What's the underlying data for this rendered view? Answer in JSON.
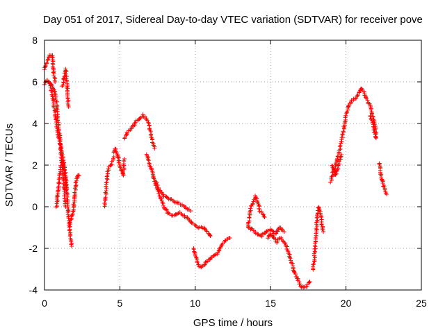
{
  "chart_data": {
    "type": "scatter",
    "title": "Day 051 of 2017, Sidereal Day-to-day VTEC variation (SDTVAR) for receiver pove",
    "xlabel": "GPS time / hours",
    "ylabel": "SDTVAR / TECUs",
    "xlim": [
      0,
      25
    ],
    "ylim": [
      -4,
      8
    ],
    "xticks": [
      0,
      5,
      10,
      15,
      20,
      25
    ],
    "yticks": [
      -4,
      -2,
      0,
      2,
      4,
      6,
      8
    ],
    "grid": true,
    "marker": "+",
    "color": "#ff0000",
    "series": [
      {
        "name": "SDTVAR",
        "segments": [
          {
            "x": [
              0.0,
              0.1,
              0.2,
              0.3,
              0.4,
              0.5,
              0.55,
              0.6,
              0.7
            ],
            "y": [
              6.6,
              6.8,
              7.0,
              7.2,
              7.3,
              7.25,
              7.1,
              6.5,
              6.0
            ]
          },
          {
            "x": [
              0.0,
              0.1,
              0.2,
              0.3,
              0.4,
              0.5,
              0.6,
              0.7,
              0.8,
              0.9,
              1.0,
              1.1,
              1.2,
              1.3,
              1.4,
              1.5,
              1.6,
              1.7,
              1.8
            ],
            "y": [
              5.9,
              6.0,
              6.1,
              6.0,
              5.8,
              5.5,
              5.0,
              4.5,
              4.0,
              3.5,
              3.2,
              2.8,
              2.4,
              2.0,
              1.5,
              0.5,
              -0.5,
              -1.3,
              -1.9
            ]
          },
          {
            "x": [
              0.3,
              0.5,
              0.7,
              0.8,
              0.9,
              1.0,
              1.1,
              1.2,
              1.3,
              1.4
            ],
            "y": [
              6.0,
              5.8,
              5.5,
              5.0,
              4.2,
              3.5,
              2.6,
              1.8,
              1.0,
              0.0
            ]
          },
          {
            "x": [
              1.2,
              1.3,
              1.4,
              1.5,
              1.6
            ],
            "y": [
              5.8,
              6.2,
              6.6,
              5.8,
              4.8
            ]
          },
          {
            "x": [
              0.8,
              0.9,
              1.0,
              1.1,
              1.2,
              1.3,
              1.4,
              1.5
            ],
            "y": [
              0.0,
              0.8,
              1.5,
              2.0,
              2.2,
              1.8,
              1.2,
              0.6
            ]
          },
          {
            "x": [
              1.7,
              1.8,
              1.9,
              2.0,
              2.1,
              2.2,
              2.3
            ],
            "y": [
              -0.8,
              -0.5,
              -0.2,
              0.5,
              1.2,
              1.5,
              1.5
            ]
          },
          {
            "x": [
              4.0,
              4.1,
              4.2,
              4.3,
              4.4,
              4.5,
              4.6
            ],
            "y": [
              0.0,
              1.0,
              1.7,
              1.9,
              2.0,
              2.2,
              2.4
            ]
          },
          {
            "x": [
              4.6,
              4.7,
              4.8,
              4.9,
              5.0,
              5.1,
              5.2,
              5.3
            ],
            "y": [
              2.6,
              2.8,
              2.6,
              2.3,
              2.0,
              1.8,
              1.5,
              2.3
            ]
          },
          {
            "x": [
              5.3,
              5.5,
              5.7,
              5.9,
              6.1,
              6.3,
              6.5,
              6.7,
              6.9,
              7.1,
              7.3
            ],
            "y": [
              3.3,
              3.6,
              3.7,
              3.9,
              4.1,
              4.2,
              4.4,
              4.3,
              4.0,
              3.3,
              2.8
            ]
          },
          {
            "x": [
              6.8,
              7.0,
              7.2,
              7.4,
              7.6,
              7.8,
              8.0,
              8.2,
              8.4,
              8.6,
              8.8,
              9.0,
              9.2,
              9.4,
              9.6,
              9.8,
              10.0,
              10.2,
              10.5,
              10.8,
              11.0
            ],
            "y": [
              2.5,
              2.0,
              1.5,
              1.0,
              0.6,
              0.2,
              -0.1,
              -0.3,
              -0.4,
              -0.4,
              -0.3,
              -0.3,
              -0.4,
              -0.5,
              -0.6,
              -0.8,
              -0.9,
              -1.0,
              -1.0,
              -1.2,
              -1.4
            ]
          },
          {
            "x": [
              7.4,
              7.6,
              7.8,
              8.0,
              8.2,
              8.5,
              8.8,
              9.1,
              9.4,
              9.7
            ],
            "y": [
              1.2,
              0.8,
              0.6,
              0.5,
              0.4,
              0.3,
              0.2,
              0.1,
              -0.1,
              -0.2
            ]
          },
          {
            "x": [
              9.9,
              10.0,
              10.2,
              10.4,
              10.6,
              10.8,
              11.0,
              11.2,
              11.5,
              11.8,
              12.0,
              12.3
            ],
            "y": [
              -2.0,
              -2.3,
              -2.8,
              -2.9,
              -2.8,
              -2.6,
              -2.5,
              -2.4,
              -2.2,
              -1.8,
              -1.6,
              -1.5
            ]
          },
          {
            "x": [
              13.5,
              13.7,
              13.9,
              14.0,
              14.1,
              14.3,
              14.6
            ],
            "y": [
              -1.0,
              0.0,
              0.3,
              0.5,
              0.3,
              -0.2,
              -0.5
            ]
          },
          {
            "x": [
              13.5,
              13.8,
              14.1,
              14.4,
              14.7,
              15.0,
              15.3,
              15.6,
              15.9
            ],
            "y": [
              -1.0,
              -1.1,
              -1.3,
              -1.4,
              -1.2,
              -1.1,
              -1.3,
              -1.0,
              -1.2
            ]
          },
          {
            "x": [
              14.8,
              15.0,
              15.2,
              15.4,
              15.6,
              15.8,
              16.0,
              16.2,
              16.4,
              16.6,
              16.8,
              17.0,
              17.2,
              17.4,
              17.6
            ],
            "y": [
              -1.5,
              -1.3,
              -1.5,
              -1.7,
              -1.5,
              -1.6,
              -1.8,
              -2.2,
              -2.7,
              -3.2,
              -3.5,
              -3.8,
              -3.9,
              -3.8,
              -3.6
            ]
          },
          {
            "x": [
              17.8,
              17.9,
              18.0,
              18.1,
              18.2,
              18.3,
              18.4,
              18.5
            ],
            "y": [
              -3.0,
              -2.5,
              -1.5,
              -0.5,
              0.0,
              -0.3,
              -0.8,
              -1.2
            ]
          },
          {
            "x": [
              19.0,
              19.2,
              19.4,
              19.6,
              19.8,
              20.0,
              20.2,
              20.4,
              20.6,
              20.8,
              21.0,
              21.2,
              21.4,
              21.6,
              21.8,
              22.0
            ],
            "y": [
              1.2,
              1.8,
              2.2,
              2.8,
              3.5,
              4.4,
              4.9,
              5.1,
              5.2,
              5.4,
              5.7,
              5.5,
              5.1,
              4.9,
              4.3,
              3.5
            ]
          },
          {
            "x": [
              19.1,
              19.3,
              19.5,
              19.7
            ],
            "y": [
              2.0,
              1.5,
              2.0,
              2.5
            ]
          },
          {
            "x": [
              21.6,
              21.8,
              21.9,
              22.0
            ],
            "y": [
              4.4,
              4.0,
              3.6,
              3.3
            ]
          },
          {
            "x": [
              22.2,
              22.3,
              22.4,
              22.5,
              22.6,
              22.7
            ],
            "y": [
              2.1,
              1.6,
              1.3,
              1.0,
              0.8,
              0.6
            ]
          }
        ]
      }
    ]
  }
}
